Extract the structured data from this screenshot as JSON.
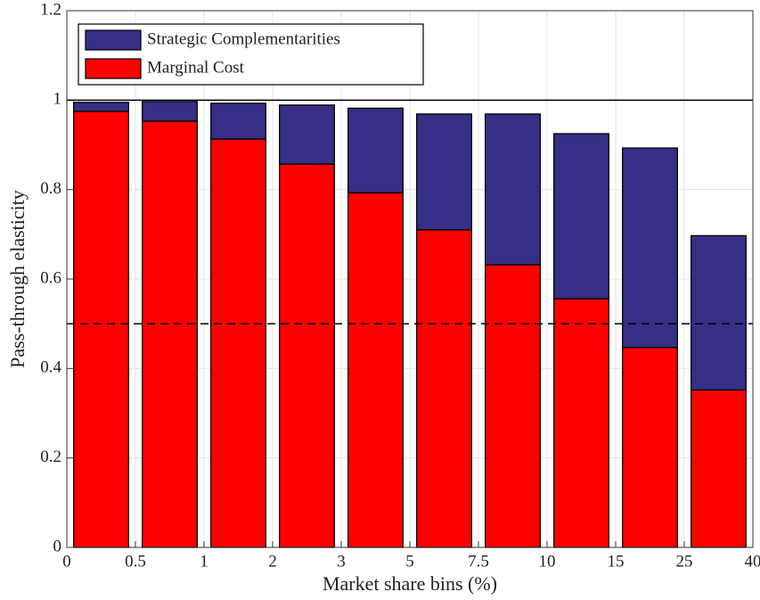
{
  "chart_data": {
    "type": "stacked_bar",
    "xlabel": "Market share bins (%)",
    "ylabel": "Pass-through elasticity",
    "x_edges": [
      0,
      0.5,
      1,
      2,
      3,
      5,
      7.5,
      10,
      15,
      25,
      40
    ],
    "series": [
      {
        "name": "Marginal Cost",
        "color": "#ff0000",
        "values": [
          0.975,
          0.953,
          0.913,
          0.857,
          0.793,
          0.71,
          0.632,
          0.556,
          0.447,
          0.352
        ]
      },
      {
        "name": "Strategic Complementarities",
        "color": "#353085",
        "values": [
          0.02,
          0.044,
          0.08,
          0.132,
          0.189,
          0.259,
          0.337,
          0.369,
          0.446,
          0.345
        ]
      }
    ],
    "legend_order": [
      1,
      0
    ],
    "legend": "upper left",
    "ylim": [
      0,
      1.2
    ],
    "yticks": [
      0,
      0.2,
      0.4,
      0.6,
      0.8,
      1,
      1.2
    ],
    "hlines": [
      {
        "value": 1,
        "style": "solid"
      },
      {
        "value": 0.5,
        "style": "dashed"
      }
    ],
    "grid": true
  }
}
